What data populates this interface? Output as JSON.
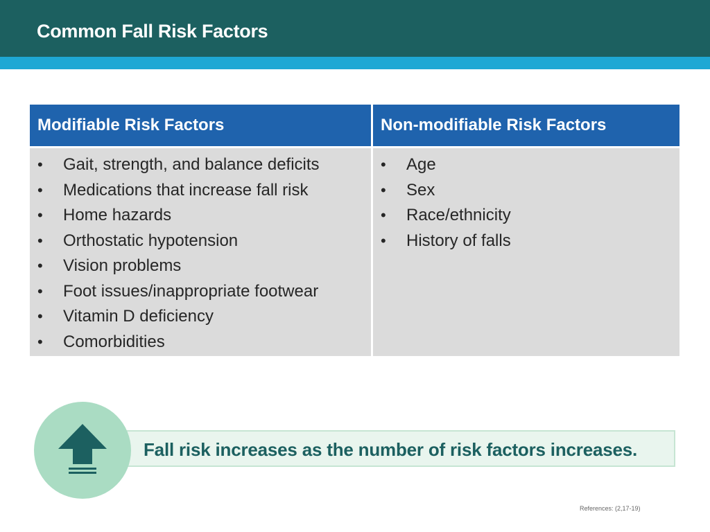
{
  "slide": {
    "title": "Common Fall Risk Factors"
  },
  "table": {
    "modifiable": {
      "header": "Modifiable Risk Factors",
      "items": [
        "Gait, strength, and balance deficits",
        "Medications that increase fall risk",
        "Home hazards",
        "Orthostatic hypotension",
        "Vision problems",
        "Foot issues/inappropriate footwear",
        "Vitamin D deficiency",
        "Comorbidities"
      ]
    },
    "non_modifiable": {
      "header": "Non-modifiable Risk Factors",
      "items": [
        "Age",
        "Sex",
        "Race/ethnicity",
        "History of falls"
      ]
    }
  },
  "callout": {
    "text": "Fall risk increases as the number of risk factors increases.",
    "icon": "up-arrow-icon"
  },
  "references": "References: (2,17-19)",
  "bullet_glyph": "•",
  "colors": {
    "title_bar": "#1c6060",
    "accent_strip": "#1ea8d4",
    "table_header": "#1f63ad",
    "table_body": "#dbdbdb",
    "callout_circle": "#aadcc3",
    "callout_text": "#1c6060"
  }
}
